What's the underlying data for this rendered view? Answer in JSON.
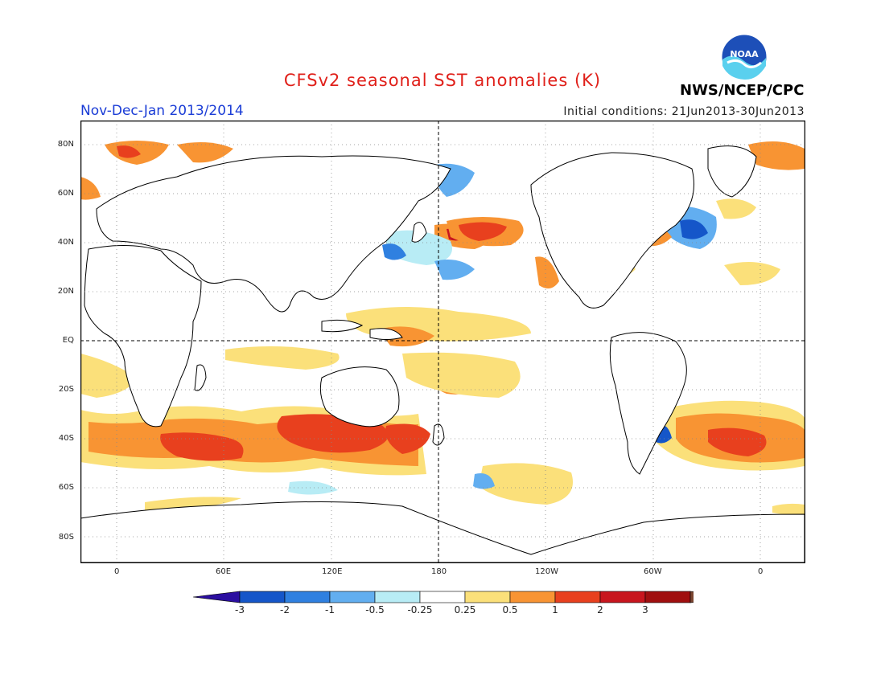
{
  "title": "CFSv2 seasonal SST anomalies (K)",
  "season": "Nov-Dec-Jan 2013/2014",
  "initial_conditions": "Initial conditions: 21Jun2013-30Jun2013",
  "agency": "NWS/NCEP/CPC",
  "logo_text": "NOAA",
  "lat_ticks": [
    "80N",
    "60N",
    "40N",
    "20N",
    "EQ",
    "20S",
    "40S",
    "60S",
    "80S"
  ],
  "lon_ticks": [
    "0",
    "60E",
    "120E",
    "180",
    "120W",
    "60W",
    "0"
  ],
  "colorbar": {
    "labels": [
      "-3",
      "-2",
      "-1",
      "-0.5",
      "-0.25",
      "0.25",
      "0.5",
      "1",
      "2",
      "3"
    ],
    "colors": [
      "#2b0fa0",
      "#1556c9",
      "#2f80e0",
      "#62aef0",
      "#b8ecf5",
      "#ffffff",
      "#fbe07a",
      "#f89433",
      "#e8401e",
      "#c8161e",
      "#a00f0f",
      "#7a4530"
    ]
  }
}
